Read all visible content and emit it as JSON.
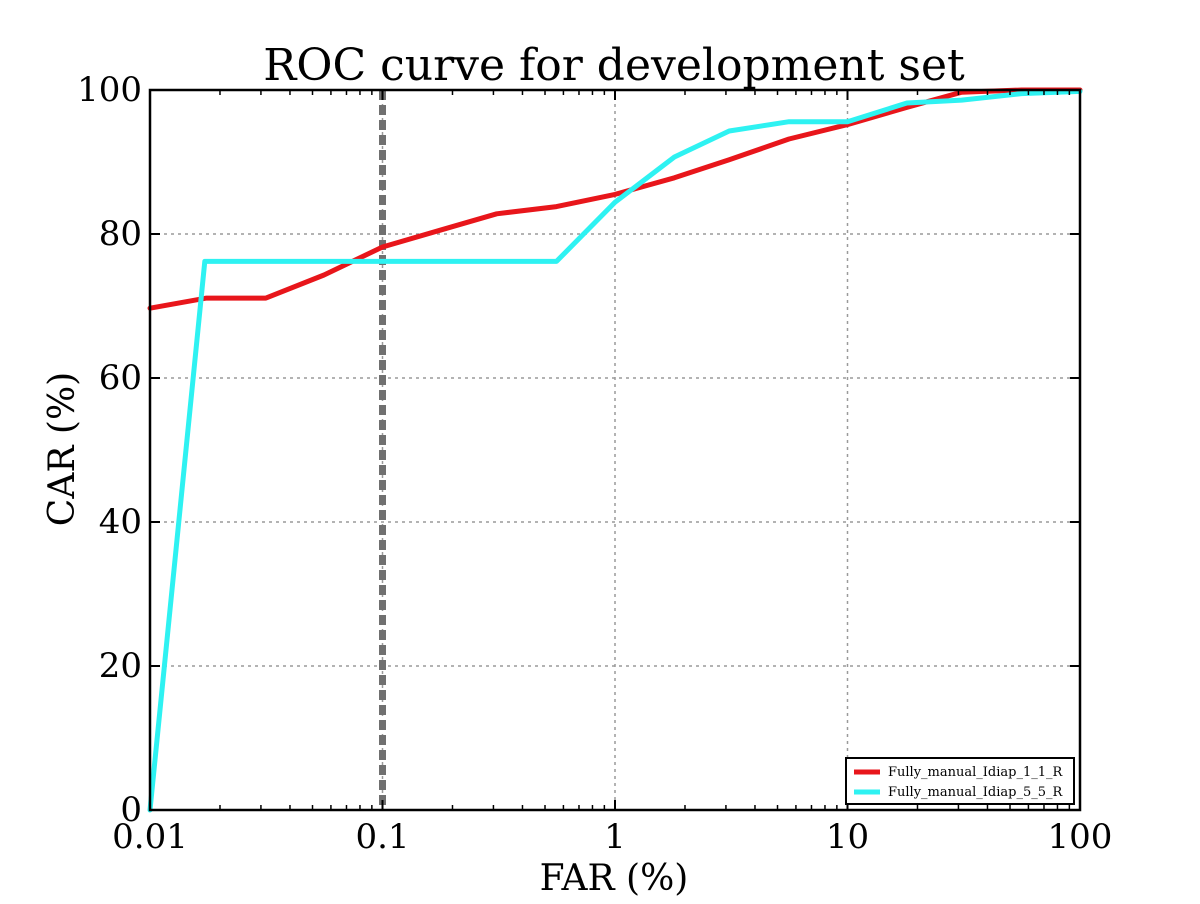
{
  "chart_data": {
    "type": "line",
    "title": "ROC curve for development set",
    "xlabel": "FAR (%)",
    "ylabel": "CAR (%)",
    "x_scale": "log",
    "xlim": [
      0.01,
      100
    ],
    "ylim": [
      0,
      100
    ],
    "x_ticks": [
      0.01,
      0.1,
      1,
      10,
      100
    ],
    "x_tick_labels": [
      "0.01",
      "0.1",
      "1",
      "10",
      "100"
    ],
    "y_ticks": [
      0,
      20,
      40,
      60,
      80,
      100
    ],
    "y_tick_labels": [
      "0",
      "20",
      "40",
      "60",
      "80",
      "100"
    ],
    "grid": true,
    "legend_position": "bottom-right",
    "reference_line": {
      "x": 0.1,
      "color": "#707070",
      "style": "dashed"
    },
    "series": [
      {
        "name": "Fully_manual_Idiap_1_1_R",
        "color": "#e8161b",
        "points": [
          [
            0.01,
            69.7
          ],
          [
            0.0175,
            71.1
          ],
          [
            0.0315,
            71.1
          ],
          [
            0.056,
            74.3
          ],
          [
            0.1,
            78.2
          ],
          [
            0.18,
            80.6
          ],
          [
            0.31,
            82.8
          ],
          [
            0.56,
            83.8
          ],
          [
            1.0,
            85.5
          ],
          [
            1.8,
            87.8
          ],
          [
            3.1,
            90.3
          ],
          [
            5.6,
            93.2
          ],
          [
            10,
            95.2
          ],
          [
            18,
            97.6
          ],
          [
            31,
            99.7
          ],
          [
            56,
            100
          ],
          [
            100,
            100
          ]
        ]
      },
      {
        "name": "Fully_manual_Idiap_5_5_R",
        "color": "#2ef2f2",
        "points": [
          [
            0.01,
            0
          ],
          [
            0.0172,
            76.2
          ],
          [
            0.1,
            76.2
          ],
          [
            0.56,
            76.2
          ],
          [
            1.0,
            84.4
          ],
          [
            1.8,
            90.7
          ],
          [
            3.1,
            94.3
          ],
          [
            5.6,
            95.6
          ],
          [
            10,
            95.6
          ],
          [
            18,
            98.2
          ],
          [
            31,
            98.6
          ],
          [
            56,
            99.5
          ],
          [
            100,
            99.8
          ]
        ]
      }
    ]
  }
}
